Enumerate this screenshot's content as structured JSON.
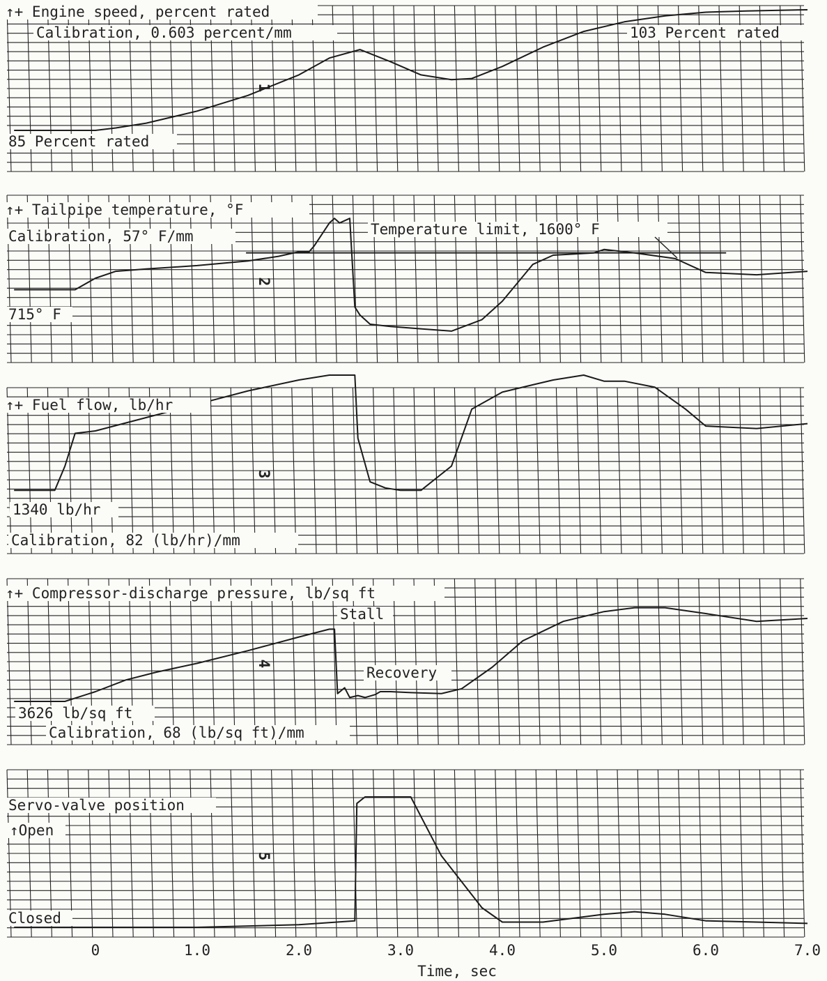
{
  "chart_data": {
    "type": "line",
    "xlabel": "Time, sec",
    "xlim": [
      -0.8,
      7.0
    ],
    "xticks": [
      "0",
      "1.0",
      "2.0",
      "3.0",
      "4.0",
      "5.0",
      "6.0",
      "7.0"
    ],
    "xtick_values": [
      0,
      1,
      2,
      3,
      4,
      5,
      6,
      7
    ],
    "grid": true,
    "panels": [
      {
        "id": "1",
        "labels": [
          "↑+ Engine speed, percent rated",
          "Calibration, 0.603 percent/mm",
          "103 Percent rated",
          "85 Percent rated"
        ],
        "series": [
          {
            "name": "",
            "x": [
              -0.8,
              0.0,
              0.2,
              0.5,
              1.0,
              1.5,
              2.0,
              2.3,
              2.6,
              2.9,
              3.2,
              3.5,
              3.7,
              4.0,
              4.4,
              4.8,
              5.2,
              5.6,
              6.0,
              6.4,
              7.0
            ],
            "y": [
              0.0,
              0.0,
              0.02,
              0.06,
              0.16,
              0.29,
              0.46,
              0.6,
              0.67,
              0.57,
              0.46,
              0.42,
              0.43,
              0.53,
              0.69,
              0.82,
              0.9,
              0.95,
              0.98,
              0.99,
              1.0
            ]
          }
        ]
      },
      {
        "id": "2",
        "labels": [
          "↑+ Tailpipe temperature, °F",
          "Calibration, 57° F/mm",
          "715° F",
          "Temperature limit, 1600° F"
        ],
        "limit_y": 0.62,
        "series": [
          {
            "name": "",
            "x": [
              -0.8,
              -0.2,
              0.0,
              0.2,
              0.5,
              1.0,
              1.5,
              1.8,
              2.0,
              2.1,
              2.15,
              2.3,
              2.35,
              2.4,
              2.5,
              2.55,
              2.6,
              2.7,
              2.9,
              3.2,
              3.5,
              3.8,
              4.0,
              4.3,
              4.5,
              4.9,
              5.0,
              5.3,
              5.7,
              6.0,
              6.5,
              7.0
            ],
            "y": [
              0.3,
              0.3,
              0.4,
              0.46,
              0.48,
              0.51,
              0.55,
              0.59,
              0.63,
              0.63,
              0.68,
              0.88,
              0.92,
              0.88,
              0.92,
              0.15,
              0.08,
              0.0,
              -0.02,
              -0.04,
              -0.06,
              0.04,
              0.2,
              0.52,
              0.6,
              0.62,
              0.65,
              0.62,
              0.57,
              0.45,
              0.43,
              0.46
            ]
          }
        ]
      },
      {
        "id": "3",
        "labels": [
          "↑+ Fuel flow, lb/hr",
          "1340 lb/hr",
          "Calibration, 82 (lb/hr)/mm"
        ],
        "series": [
          {
            "name": "",
            "x": [
              -0.8,
              -0.4,
              -0.3,
              -0.2,
              0.0,
              0.5,
              1.0,
              1.5,
              2.0,
              2.3,
              2.55,
              2.58,
              2.7,
              2.85,
              3.0,
              3.2,
              3.5,
              3.7,
              4.0,
              4.3,
              4.5,
              4.8,
              5.0,
              5.2,
              5.5,
              5.8,
              6.0,
              6.5,
              7.0
            ],
            "y": [
              0.05,
              0.05,
              0.25,
              0.52,
              0.54,
              0.65,
              0.76,
              0.87,
              0.96,
              1.0,
              1.0,
              0.48,
              0.12,
              0.07,
              0.05,
              0.05,
              0.25,
              0.72,
              0.86,
              0.92,
              0.96,
              1.0,
              0.95,
              0.95,
              0.9,
              0.72,
              0.58,
              0.56,
              0.6
            ]
          }
        ]
      },
      {
        "id": "4",
        "labels": [
          "↑+ Compressor-discharge pressure, lb/sq ft",
          "Stall",
          "Recovery",
          "3626 lb/sq ft",
          "Calibration, 68 (lb/sq ft)/mm"
        ],
        "series": [
          {
            "name": "",
            "x": [
              -0.8,
              -0.3,
              0.0,
              0.3,
              0.6,
              1.0,
              1.5,
              2.0,
              2.3,
              2.35,
              2.38,
              2.45,
              2.5,
              2.58,
              2.65,
              2.75,
              2.8,
              2.9,
              3.1,
              3.4,
              3.6,
              3.9,
              4.2,
              4.6,
              5.0,
              5.3,
              5.6,
              6.0,
              6.5,
              7.0
            ],
            "y": [
              0.0,
              0.0,
              0.1,
              0.22,
              0.3,
              0.39,
              0.52,
              0.66,
              0.74,
              0.74,
              0.08,
              0.14,
              0.04,
              0.06,
              0.04,
              0.07,
              0.1,
              0.1,
              0.09,
              0.08,
              0.13,
              0.35,
              0.62,
              0.82,
              0.92,
              0.96,
              0.96,
              0.9,
              0.82,
              0.85
            ]
          }
        ]
      },
      {
        "id": "5",
        "labels": [
          "Servo-valve position",
          "↑Open",
          "Closed"
        ],
        "series": [
          {
            "name": "",
            "x": [
              -0.8,
              1.0,
              2.0,
              2.55,
              2.57,
              2.65,
              3.0,
              3.1,
              3.4,
              3.8,
              4.0,
              4.4,
              5.0,
              5.3,
              5.6,
              6.0,
              6.5,
              7.0
            ],
            "y": [
              0.0,
              0.0,
              0.02,
              0.05,
              0.95,
              1.0,
              1.0,
              1.0,
              0.55,
              0.15,
              0.04,
              0.04,
              0.1,
              0.12,
              0.1,
              0.05,
              0.04,
              0.03
            ]
          }
        ]
      }
    ]
  }
}
